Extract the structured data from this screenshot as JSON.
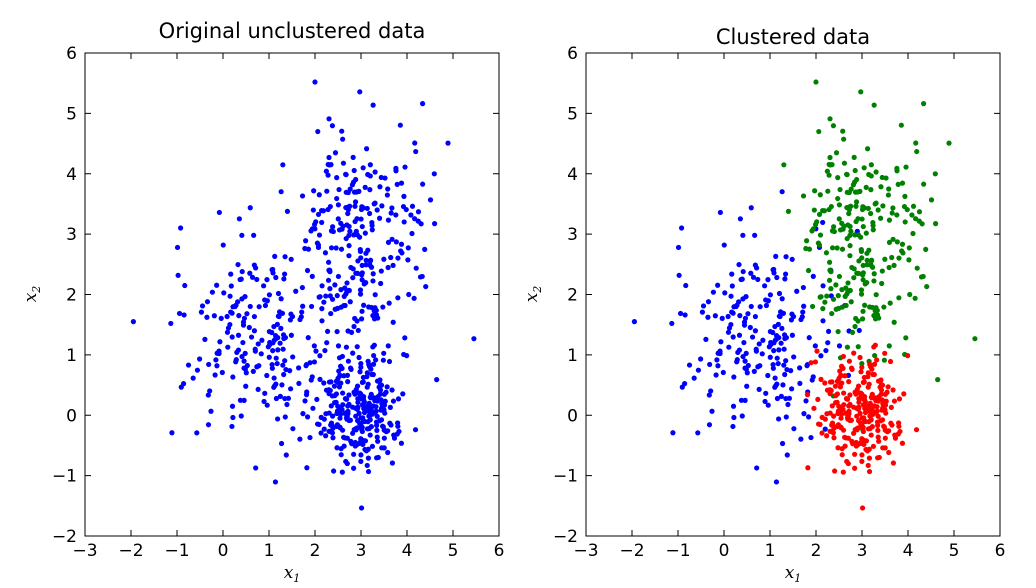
{
  "chart_data": [
    {
      "type": "scatter",
      "title": "Original unclustered data",
      "xlabel": "x1",
      "ylabel": "x2",
      "xlim": [
        -3,
        6
      ],
      "ylim": [
        -2,
        6
      ],
      "xticks": [
        "−3",
        "−2",
        "−1",
        "0",
        "1",
        "2",
        "3",
        "4",
        "5",
        "6"
      ],
      "yticks": [
        "−2",
        "−1",
        "0",
        "1",
        "2",
        "3",
        "4",
        "5",
        "6"
      ],
      "grid": false,
      "legend": "none",
      "series": [
        {
          "color": "#0000ff",
          "clusters": [
            {
              "n": 230,
              "cx": 0.8,
              "cy": 1.3,
              "sx": 0.9,
              "sy": 0.9
            },
            {
              "n": 260,
              "cx": 3.0,
              "cy": 3.0,
              "sx": 0.75,
              "sy": 1.0
            },
            {
              "n": 270,
              "cx": 3.0,
              "cy": 0.05,
              "sx": 0.45,
              "sy": 0.45
            }
          ]
        }
      ]
    },
    {
      "type": "scatter",
      "title": "Clustered data",
      "xlabel": "x1",
      "ylabel": "x2",
      "xlim": [
        -3,
        6
      ],
      "ylim": [
        -2,
        6
      ],
      "xticks": [
        "−3",
        "−2",
        "−1",
        "0",
        "1",
        "2",
        "3",
        "4",
        "5",
        "6"
      ],
      "yticks": [
        "−2",
        "−1",
        "0",
        "1",
        "2",
        "3",
        "4",
        "5",
        "6"
      ],
      "grid": false,
      "legend": "none",
      "series": [
        {
          "color": "#0000ff",
          "clusters": [
            {
              "n": 230,
              "cx": 0.8,
              "cy": 1.3,
              "sx": 0.9,
              "sy": 0.9
            }
          ]
        },
        {
          "color": "#008000",
          "clusters": [
            {
              "n": 260,
              "cx": 3.0,
              "cy": 3.0,
              "sx": 0.75,
              "sy": 1.0
            }
          ]
        },
        {
          "color": "#ff0000",
          "clusters": [
            {
              "n": 270,
              "cx": 3.0,
              "cy": 0.05,
              "sx": 0.45,
              "sy": 0.45
            }
          ]
        }
      ]
    }
  ]
}
